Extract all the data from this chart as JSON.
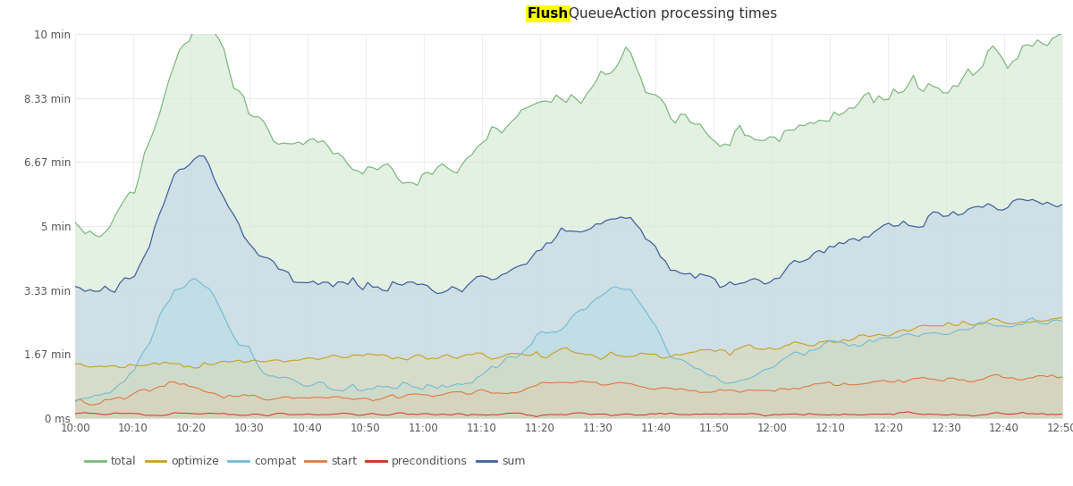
{
  "title_plain": "QueueAction processing times",
  "title_highlight": "Flush",
  "background_color": "#ffffff",
  "ylim": [
    0,
    600
  ],
  "yticks": [
    0,
    100,
    200,
    300,
    400,
    500,
    600
  ],
  "ytick_labels": [
    "0 ms",
    "1.67 min",
    "3.33 min",
    "5 min",
    "6.67 min",
    "8.33 min",
    "10 min"
  ],
  "xtick_labels": [
    "10:00",
    "10:10",
    "10:20",
    "10:30",
    "10:40",
    "10:50",
    "11:00",
    "11:10",
    "11:20",
    "11:30",
    "11:40",
    "11:50",
    "12:00",
    "12:10",
    "12:20",
    "12:30",
    "12:40",
    "12:50"
  ],
  "total_color": "#7db87d",
  "total_fill": "#c8e0c8",
  "optimize_color": "#c8a020",
  "compat_color": "#70bcd4",
  "compat_fill": "#b8dce8",
  "start_color": "#e07840",
  "preconditions_color": "#cc3020",
  "sum_color": "#4060a0",
  "sum_fill": "#b8ccde",
  "n_points": 200
}
